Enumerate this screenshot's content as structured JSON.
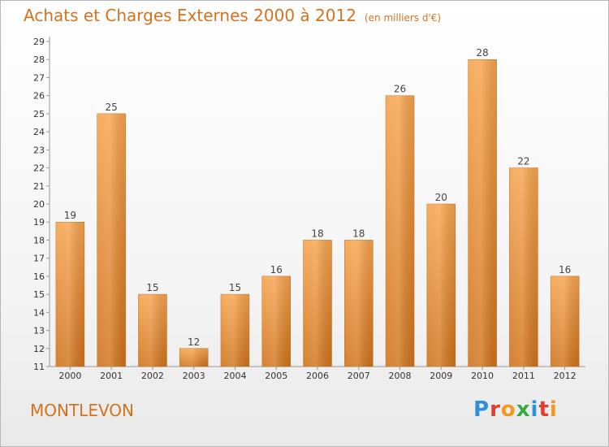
{
  "header": {
    "title": "Achats et Charges Externes 2000 à 2012",
    "unit": "(en milliers d'€)"
  },
  "footer": {
    "commune": "MONTLEVON",
    "logo": "Proxiti"
  },
  "colors": {
    "bar_top": "#f6a44e",
    "bar_bottom": "#d0731c",
    "title": "#d4731f"
  },
  "chart_data": {
    "type": "bar",
    "title": "Achats et Charges Externes 2000 à 2012",
    "categories": [
      "2000",
      "2001",
      "2002",
      "2003",
      "2004",
      "2005",
      "2006",
      "2007",
      "2008",
      "2009",
      "2010",
      "2011",
      "2012"
    ],
    "values": [
      19,
      25,
      15,
      12,
      15,
      16,
      18,
      18,
      26,
      20,
      28,
      22,
      16
    ],
    "ylim": [
      11,
      29
    ],
    "yticks": [
      11,
      12,
      13,
      14,
      15,
      16,
      17,
      18,
      19,
      20,
      21,
      22,
      23,
      24,
      25,
      26,
      27,
      28,
      29
    ],
    "grid": false,
    "data_labels": true
  }
}
